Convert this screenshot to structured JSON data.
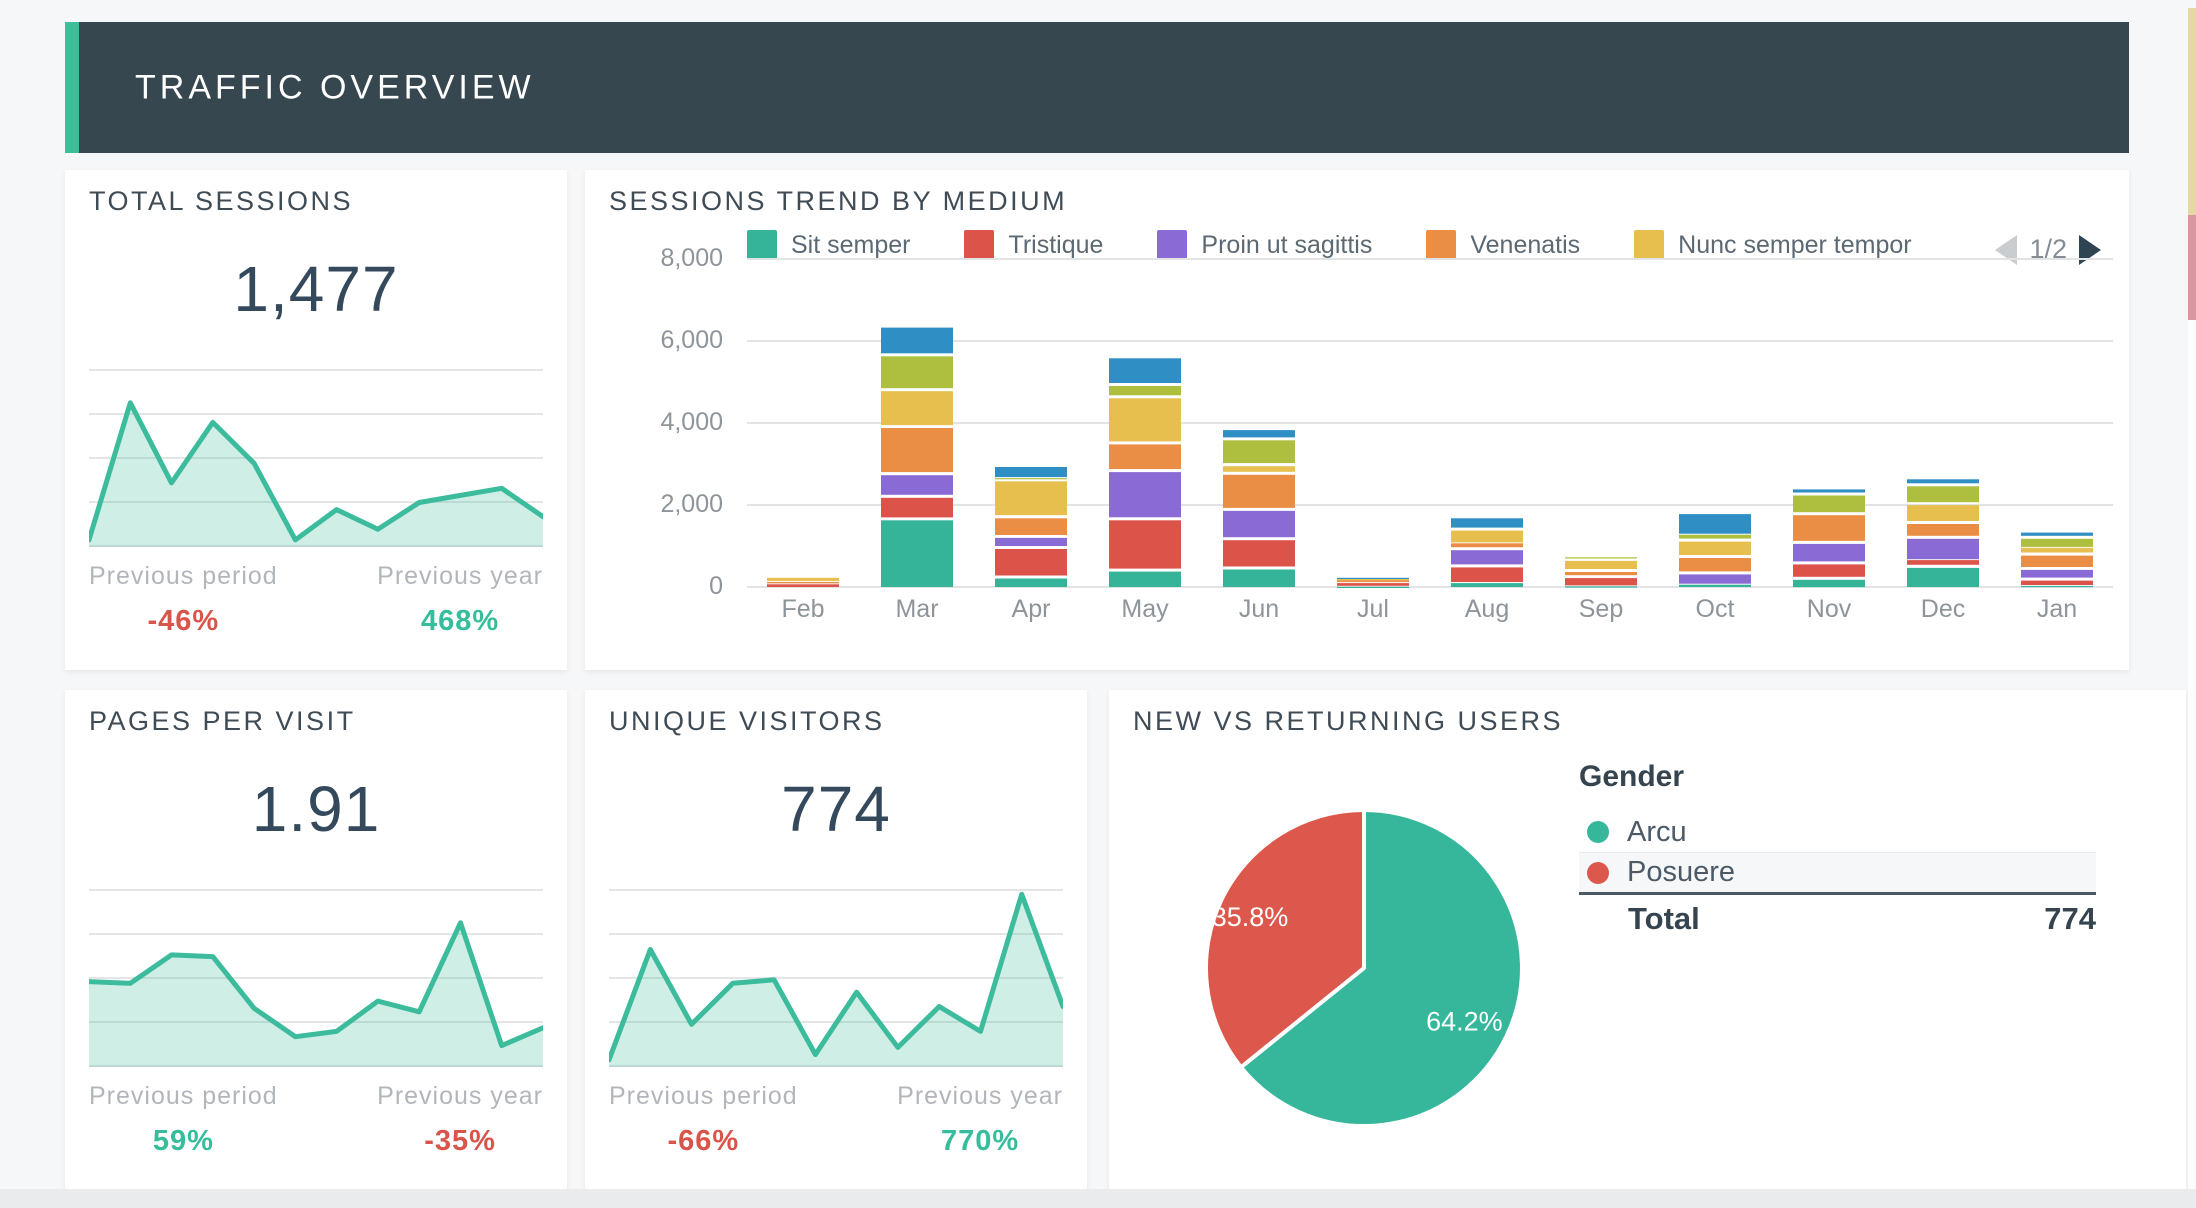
{
  "header": {
    "title": "TRAFFIC OVERVIEW"
  },
  "cards": {
    "total_sessions": {
      "title": "TOTAL SESSIONS",
      "value": "1,477",
      "prev_period_label": "Previous period",
      "prev_period_value": "-46%",
      "prev_period_color": "#D9544A",
      "prev_year_label": "Previous year",
      "prev_year_value": "468%",
      "prev_year_color": "#35BD9C"
    },
    "sessions_trend": {
      "title": "SESSIONS TREND BY MEDIUM",
      "pagination_label": "1/2"
    },
    "pages_per_visit": {
      "title": "PAGES PER VISIT",
      "value": "1.91",
      "prev_period_label": "Previous period",
      "prev_period_value": "59%",
      "prev_period_color": "#35BD9C",
      "prev_year_label": "Previous year",
      "prev_year_value": "-35%",
      "prev_year_color": "#D9544A"
    },
    "unique_visitors": {
      "title": "UNIQUE VISITORS",
      "value": "774",
      "prev_period_label": "Previous period",
      "prev_period_value": "-66%",
      "prev_period_color": "#D9544A",
      "prev_year_label": "Previous year",
      "prev_year_value": "770%",
      "prev_year_color": "#35BD9C"
    },
    "new_vs_returning": {
      "title": "NEW VS RETURNING USERS",
      "legend_title": "Gender",
      "total_label": "Total",
      "total_value": "774"
    }
  },
  "colors": {
    "accent_teal": "#3DBE9B",
    "header_dark": "#37474F",
    "spark_stroke": "#3CBC9C",
    "gridline": "#E2E3E4",
    "axis_text": "#8D949A"
  },
  "chart_data": [
    {
      "id": "total_sessions_spark",
      "type": "area",
      "color": "#3CBC9C",
      "fill_opacity": 0.25,
      "points_norm": [
        0.04,
        0.81,
        0.36,
        0.7,
        0.47,
        0.04,
        0.21,
        0.1,
        0.25,
        0.29,
        0.33,
        0.17
      ]
    },
    {
      "id": "sessions_trend",
      "type": "bar",
      "stacked": true,
      "title": "SESSIONS TREND BY MEDIUM",
      "categories": [
        "Feb",
        "Mar",
        "Apr",
        "May",
        "Jun",
        "Jul",
        "Aug",
        "Sep",
        "Oct",
        "Nov",
        "Dec",
        "Jan"
      ],
      "ylim": [
        0,
        8000
      ],
      "yticks": [
        "0",
        "2,000",
        "4,000",
        "6,000",
        "8,000"
      ],
      "grid": true,
      "legend_position": "top",
      "series": [
        {
          "name": "Sit semper",
          "color": "#35B49A",
          "values": [
            0,
            1700,
            280,
            450,
            500,
            30,
            120,
            40,
            80,
            250,
            540,
            50
          ]
        },
        {
          "name": "Tristique",
          "color": "#DB5349",
          "values": [
            90,
            550,
            720,
            1250,
            715,
            90,
            430,
            250,
            0,
            375,
            140,
            180
          ]
        },
        {
          "name": "Proin ut sagittis",
          "color": "#8A6AD5",
          "values": [
            0,
            550,
            270,
            1175,
            715,
            0,
            420,
            0,
            300,
            500,
            570,
            260
          ]
        },
        {
          "name": "Venenatis",
          "color": "#EB8E45",
          "values": [
            60,
            1150,
            480,
            675,
            880,
            70,
            120,
            150,
            400,
            700,
            360,
            350
          ]
        },
        {
          "name": "Nunc semper tempor",
          "color": "#E7BF4E",
          "values": [
            100,
            900,
            900,
            1125,
            210,
            30,
            360,
            270,
            400,
            0,
            460,
            140
          ]
        },
        {
          "name": "",
          "color": "#AEBE3F",
          "values": [
            0,
            850,
            30,
            300,
            630,
            0,
            0,
            40,
            120,
            480,
            460,
            270
          ]
        },
        {
          "name": "",
          "color": "#2F8EC3",
          "values": [
            0,
            700,
            320,
            675,
            250,
            30,
            300,
            0,
            550,
            100,
            170,
            150
          ]
        }
      ]
    },
    {
      "id": "pages_per_visit_spark",
      "type": "area",
      "color": "#3CBC9C",
      "fill_opacity": 0.25,
      "points_norm": [
        0.48,
        0.47,
        0.63,
        0.62,
        0.33,
        0.17,
        0.2,
        0.37,
        0.31,
        0.81,
        0.12,
        0.22
      ]
    },
    {
      "id": "unique_visitors_spark",
      "type": "area",
      "color": "#3CBC9C",
      "fill_opacity": 0.25,
      "points_norm": [
        0.04,
        0.66,
        0.24,
        0.47,
        0.49,
        0.07,
        0.42,
        0.11,
        0.34,
        0.2,
        0.97,
        0.34
      ]
    },
    {
      "id": "new_vs_returning_pie",
      "type": "pie",
      "legend_title": "Gender",
      "total": 774,
      "slices": [
        {
          "label": "Arcu",
          "value": 64.2,
          "pct_label": "64.2%",
          "color": "#36B79B",
          "label_angle": 118,
          "label_r": 0.72
        },
        {
          "label": "Posuere",
          "value": 35.8,
          "pct_label": "35.8%",
          "color": "#DC584D",
          "label_angle": 294,
          "label_r": 0.79
        }
      ]
    }
  ]
}
